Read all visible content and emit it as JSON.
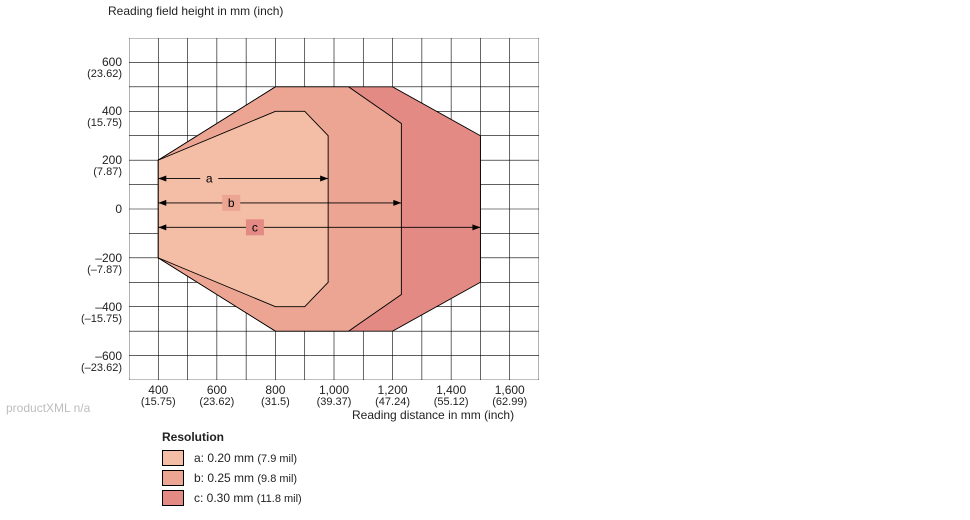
{
  "chart": {
    "type": "area-overlay",
    "y_title": "Reading field height in mm (inch)",
    "x_title": "Reading distance in mm (inch)",
    "x_range": [
      300,
      1700
    ],
    "y_range": [
      -700,
      700
    ],
    "x_ticks_mm": [
      400,
      600,
      800,
      1000,
      1200,
      1400,
      1600
    ],
    "x_ticks_inch": [
      "(15.75)",
      "(23.62)",
      "(31.5)",
      "(39.37)",
      "(47.24)",
      "(55.12)",
      "(62.99)"
    ],
    "x_labels": [
      "400",
      "600",
      "800",
      "1,000",
      "1,200",
      "1,400",
      "1,600"
    ],
    "y_ticks_mm": [
      600,
      400,
      200,
      0,
      -200,
      -400,
      -600
    ],
    "y_ticks_inch": [
      "(23.62)",
      "(15.75)",
      "(7.87)",
      "",
      "(–7.87)",
      "(–15.75)",
      "(–23.62)"
    ],
    "y_labels": [
      "600",
      "400",
      "200",
      "0",
      "–200",
      "–400",
      "–600"
    ],
    "grid_color": "#000000",
    "grid_stroke": 0.6,
    "background": "#ffffff",
    "region_stroke": "#000000",
    "region_stroke_w": 0.9,
    "regions": {
      "c": {
        "color": "#e38a84",
        "poly_xy": [
          [
            400,
            -200
          ],
          [
            400,
            200
          ],
          [
            800,
            500
          ],
          [
            1200,
            500
          ],
          [
            1500,
            300
          ],
          [
            1500,
            -300
          ],
          [
            1200,
            -500
          ],
          [
            800,
            -500
          ]
        ]
      },
      "b": {
        "color": "#eda593",
        "poly_xy": [
          [
            400,
            -200
          ],
          [
            400,
            200
          ],
          [
            800,
            500
          ],
          [
            1050,
            500
          ],
          [
            1230,
            350
          ],
          [
            1230,
            -350
          ],
          [
            1050,
            -500
          ],
          [
            800,
            -500
          ]
        ]
      },
      "a": {
        "color": "#f3bda6",
        "poly_xy": [
          [
            400,
            -200
          ],
          [
            400,
            200
          ],
          [
            800,
            400
          ],
          [
            900,
            400
          ],
          [
            980,
            300
          ],
          [
            980,
            -300
          ],
          [
            900,
            -400
          ],
          [
            800,
            -400
          ]
        ]
      }
    },
    "dimension_lines": [
      {
        "label": "a",
        "y": 125,
        "x1": 400,
        "x2": 980
      },
      {
        "label": "b",
        "y": 25,
        "x1": 400,
        "x2": 1230
      },
      {
        "label": "c",
        "y": -75,
        "x1": 400,
        "x2": 1500
      }
    ],
    "font_size_axis": 12
  },
  "legend": {
    "title": "Resolution",
    "items": [
      {
        "key": "a",
        "text_main": "a: 0.20 mm",
        "text_paren": "(7.9 mil)",
        "color": "#f3bda6"
      },
      {
        "key": "b",
        "text_main": "b: 0.25 mm",
        "text_paren": "(9.8 mil)",
        "color": "#eda593"
      },
      {
        "key": "c",
        "text_main": "c: 0.30 mm",
        "text_paren": "(11.8 mil)",
        "color": "#e38a84"
      }
    ]
  },
  "footer_text": "productXML n/a"
}
